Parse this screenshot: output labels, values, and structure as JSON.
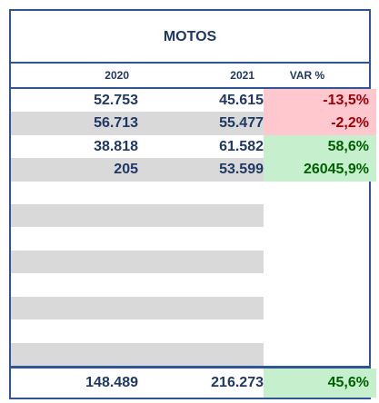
{
  "title": "MOTOS",
  "header": [
    "2020",
    "2021",
    "VAR %"
  ],
  "rows": [
    [
      "52.753",
      "45.615",
      "-13,5%"
    ],
    [
      "56.713",
      "55.477",
      "-2,2%"
    ],
    [
      "38.818",
      "61.582",
      "58,6%"
    ],
    [
      "205",
      "53.599",
      "26045,9%"
    ]
  ],
  "total": [
    "148.489",
    "216.273",
    "45,6%"
  ]
}
